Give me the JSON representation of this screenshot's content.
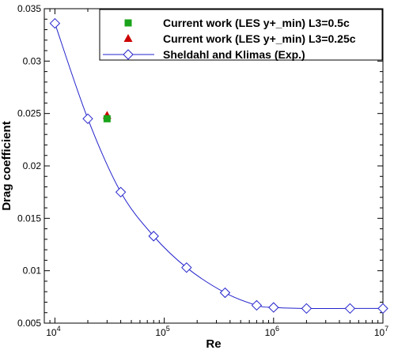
{
  "chart_data": {
    "type": "scatter",
    "xlabel": "Re",
    "ylabel": "Drag coefficient",
    "xscale": "log",
    "xlim": [
      8000,
      10000000
    ],
    "ylim": [
      0.005,
      0.035
    ],
    "x_ticks": [
      {
        "value": 10000,
        "base": "10",
        "exp": "4"
      },
      {
        "value": 100000,
        "base": "10",
        "exp": "5"
      },
      {
        "value": 1000000,
        "base": "10",
        "exp": "6"
      },
      {
        "value": 10000000,
        "base": "10",
        "exp": "7"
      }
    ],
    "y_ticks": [
      {
        "value": 0.005,
        "label": "0.005"
      },
      {
        "value": 0.01,
        "label": "0.01"
      },
      {
        "value": 0.015,
        "label": "0.015"
      },
      {
        "value": 0.02,
        "label": "0.02"
      },
      {
        "value": 0.025,
        "label": "0.025"
      },
      {
        "value": 0.03,
        "label": "0.03"
      },
      {
        "value": 0.035,
        "label": "0.035"
      }
    ],
    "grid": false,
    "legend_position": "top-right",
    "series": [
      {
        "name": "Current work (LES y+_min) L3=0.5c",
        "marker": "square",
        "color": "#1aa31a",
        "points": [
          {
            "x": 30000,
            "y": 0.0245
          }
        ]
      },
      {
        "name": "Current work (LES y+_min) L3=0.25c",
        "marker": "triangle",
        "color": "#cc0000",
        "points": [
          {
            "x": 30000,
            "y": 0.0248
          }
        ]
      },
      {
        "name": "Sheldahl and Klimas (Exp.)",
        "marker": "diamond",
        "line": true,
        "color": "#2222cc",
        "points": [
          {
            "x": 10000,
            "y": 0.0336
          },
          {
            "x": 20000,
            "y": 0.0245
          },
          {
            "x": 40000,
            "y": 0.0175
          },
          {
            "x": 80000,
            "y": 0.0133
          },
          {
            "x": 160000,
            "y": 0.0103
          },
          {
            "x": 360000,
            "y": 0.0079
          },
          {
            "x": 700000,
            "y": 0.0067
          },
          {
            "x": 1000000,
            "y": 0.0065
          },
          {
            "x": 2000000,
            "y": 0.0064
          },
          {
            "x": 5000000,
            "y": 0.0064
          },
          {
            "x": 10000000,
            "y": 0.0064
          }
        ]
      }
    ]
  }
}
